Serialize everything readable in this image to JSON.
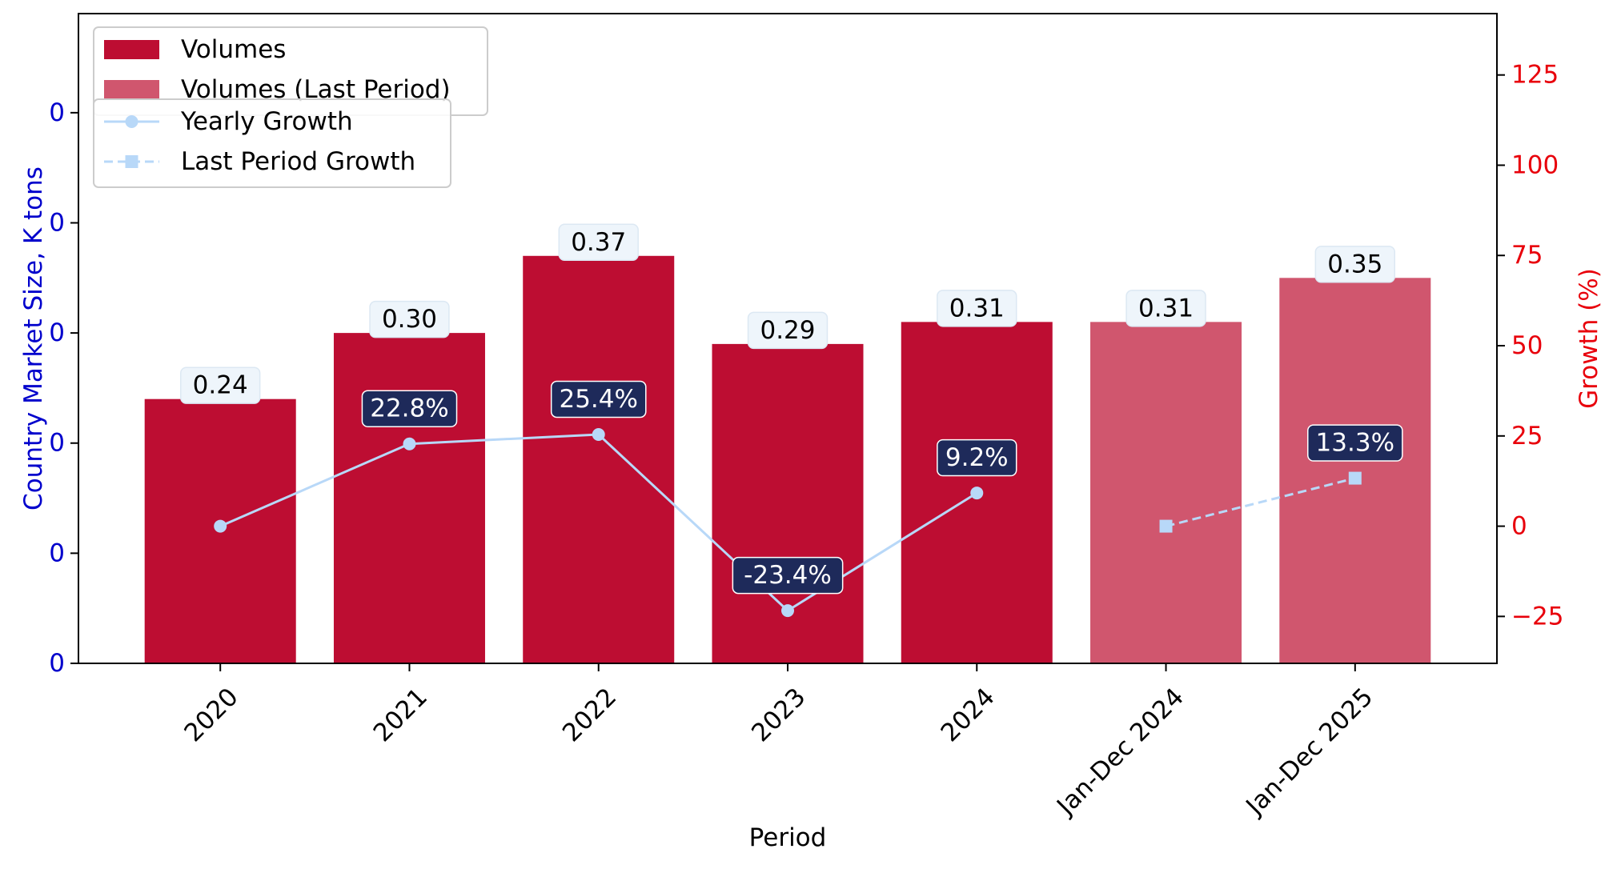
{
  "chart_data": {
    "type": "bar",
    "categories": [
      "2020",
      "2021",
      "2022",
      "2023",
      "2024",
      "Jan-Dec 2024",
      "Jan-Dec 2025"
    ],
    "xlabel": "Period",
    "ylabel_left": "Country Market Size, K tons",
    "ylabel_right": "Growth (%)",
    "left_axis": {
      "ylim": [
        0.0,
        0.59
      ],
      "ticks": [
        0,
        0.1,
        0.2,
        0.3,
        0.4,
        0.5
      ],
      "tick_labels": [
        "0",
        "0",
        "0",
        "0",
        "0",
        "0"
      ],
      "color": "#0000cc"
    },
    "right_axis": {
      "ylim": [
        -38,
        142
      ],
      "ticks": [
        -25,
        0,
        25,
        50,
        75,
        100,
        125
      ],
      "tick_labels": [
        "−25",
        "0",
        "25",
        "50",
        "75",
        "100",
        "125"
      ],
      "color": "#e8000b"
    },
    "series": [
      {
        "name": "Volumes",
        "kind": "bar",
        "axis": "left",
        "color": "#bd0d32",
        "values": [
          0.24,
          0.3,
          0.37,
          0.29,
          0.31,
          null,
          null
        ],
        "labels": [
          "0.24",
          "0.30",
          "0.37",
          "0.29",
          "0.31",
          null,
          null
        ]
      },
      {
        "name": "Volumes (Last Period)",
        "kind": "bar",
        "axis": "left",
        "color": "#d0566e",
        "values": [
          null,
          null,
          null,
          null,
          null,
          0.31,
          0.35
        ],
        "labels": [
          null,
          null,
          null,
          null,
          null,
          "0.31",
          "0.35"
        ]
      },
      {
        "name": "Yearly Growth",
        "kind": "line",
        "axis": "right",
        "color": "#b8d8f8",
        "marker": "circle",
        "dash": "solid",
        "values": [
          0,
          22.8,
          25.4,
          -23.4,
          9.2,
          null,
          null
        ],
        "labels": [
          null,
          "22.8%",
          "25.4%",
          "-23.4%",
          "9.2%",
          null,
          null
        ]
      },
      {
        "name": "Last Period Growth",
        "kind": "line",
        "axis": "right",
        "color": "#b8d8f8",
        "marker": "square",
        "dash": "dashed",
        "values": [
          null,
          null,
          null,
          null,
          null,
          0,
          13.3
        ],
        "labels": [
          null,
          null,
          null,
          null,
          null,
          null,
          "13.3%"
        ]
      }
    ],
    "legend_bars": [
      "Volumes",
      "Volumes (Last Period)"
    ],
    "legend_lines": [
      "Yearly Growth",
      "Last Period Growth"
    ],
    "legend_placement": "top-left",
    "grid": false,
    "label_box_colors": {
      "volume_bg": "#eef5fb",
      "growth_bg": "#1e2a5a",
      "growth_text": "#ffffff"
    }
  }
}
